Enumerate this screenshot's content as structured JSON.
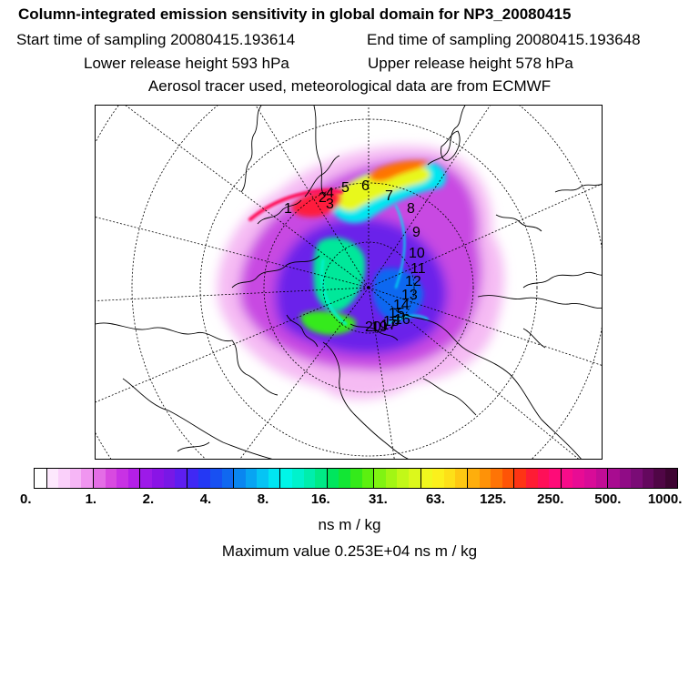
{
  "title": "Column-integrated emission sensitivity in global domain for NP3_20080415",
  "start_time": "Start time of sampling 20080415.193614",
  "end_time": "End time of sampling 20080415.193648",
  "lower_release": "Lower release height  593 hPa",
  "upper_release": "Upper release height  578 hPa",
  "aerosol": "Aerosol tracer used, meteorological data are from ECMWF",
  "map": {
    "projection": "north-polar-stereographic",
    "labels": [
      "1",
      "2",
      "3",
      "4",
      "5",
      "6",
      "7",
      "8",
      "9",
      "10",
      "11",
      "12",
      "13",
      "14",
      "15",
      "16",
      "17",
      "18",
      "19",
      "20"
    ]
  },
  "colorbar": {
    "ticks": [
      "0.",
      "1.",
      "2.",
      "4.",
      "8.",
      "16.",
      "31.",
      "63.",
      "125.",
      "250.",
      "500.",
      "1000."
    ],
    "colors": [
      "#ffffff",
      "#fde8fd",
      "#fad0fa",
      "#f6b6f6",
      "#f095f0",
      "#e46de6",
      "#d84ae0",
      "#c832e4",
      "#b41fe8",
      "#9d1ae8",
      "#8a14e6",
      "#7818e6",
      "#5e1ef0",
      "#4028f4",
      "#2438f4",
      "#1850f2",
      "#1068f0",
      "#0a86f0",
      "#08a4f2",
      "#06c4f4",
      "#00e6f2",
      "#00f6e8",
      "#00f2cc",
      "#00eeac",
      "#00ea86",
      "#00e65e",
      "#12e634",
      "#34ea1a",
      "#5cf010",
      "#80f412",
      "#a2f614",
      "#c2f818",
      "#dcf81c",
      "#f0f81e",
      "#fbf01c",
      "#fde018",
      "#fec812",
      "#feae0c",
      "#fe9208",
      "#fe7406",
      "#fe5406",
      "#fe3414",
      "#fe1c34",
      "#fe1058",
      "#fe0c78",
      "#f80c8a",
      "#e80c94",
      "#d80c98",
      "#c20c96",
      "#a80c90",
      "#900c86",
      "#7a0c76",
      "#64085e",
      "#500646",
      "#3e0432"
    ],
    "borders_after": [
      0,
      4,
      8,
      12,
      16,
      20,
      24,
      28,
      32,
      36,
      40,
      44,
      48
    ],
    "unit": "ns m / kg"
  },
  "max_value": "Maximum value  0.253E+04 ns m / kg"
}
